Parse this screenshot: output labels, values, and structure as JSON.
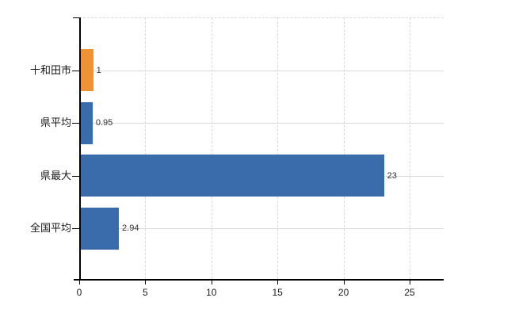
{
  "chart_data": {
    "type": "bar",
    "orientation": "horizontal",
    "title": "",
    "xlabel": "",
    "ylabel": "",
    "categories": [
      "十和田市",
      "県平均",
      "県最大",
      "全国平均"
    ],
    "values": [
      1,
      0.95,
      23,
      2.94
    ],
    "value_labels": [
      "1",
      "0.95",
      "23",
      "2.94"
    ],
    "bar_colors": [
      "#EB9335",
      "#3A6BAB",
      "#3A6BAB",
      "#3A6BAB"
    ],
    "x_ticks": [
      "0",
      "5",
      "10",
      "15",
      "20",
      "25"
    ],
    "x_tick_values": [
      0,
      5,
      10,
      15,
      20,
      25
    ],
    "xlim": [
      0,
      27.6
    ],
    "legend": "none",
    "grid": {
      "vertical_style": "dashed",
      "horizontal_style": "solid",
      "color": "#D9D9D9"
    },
    "colors": {
      "background": "#FFFFFF",
      "axis": "#000000",
      "bar_orange": "#EB9335",
      "bar_blue": "#3A6BAB",
      "value_label_text": "#303030",
      "tick_label_text": "#1A1A1A"
    }
  }
}
